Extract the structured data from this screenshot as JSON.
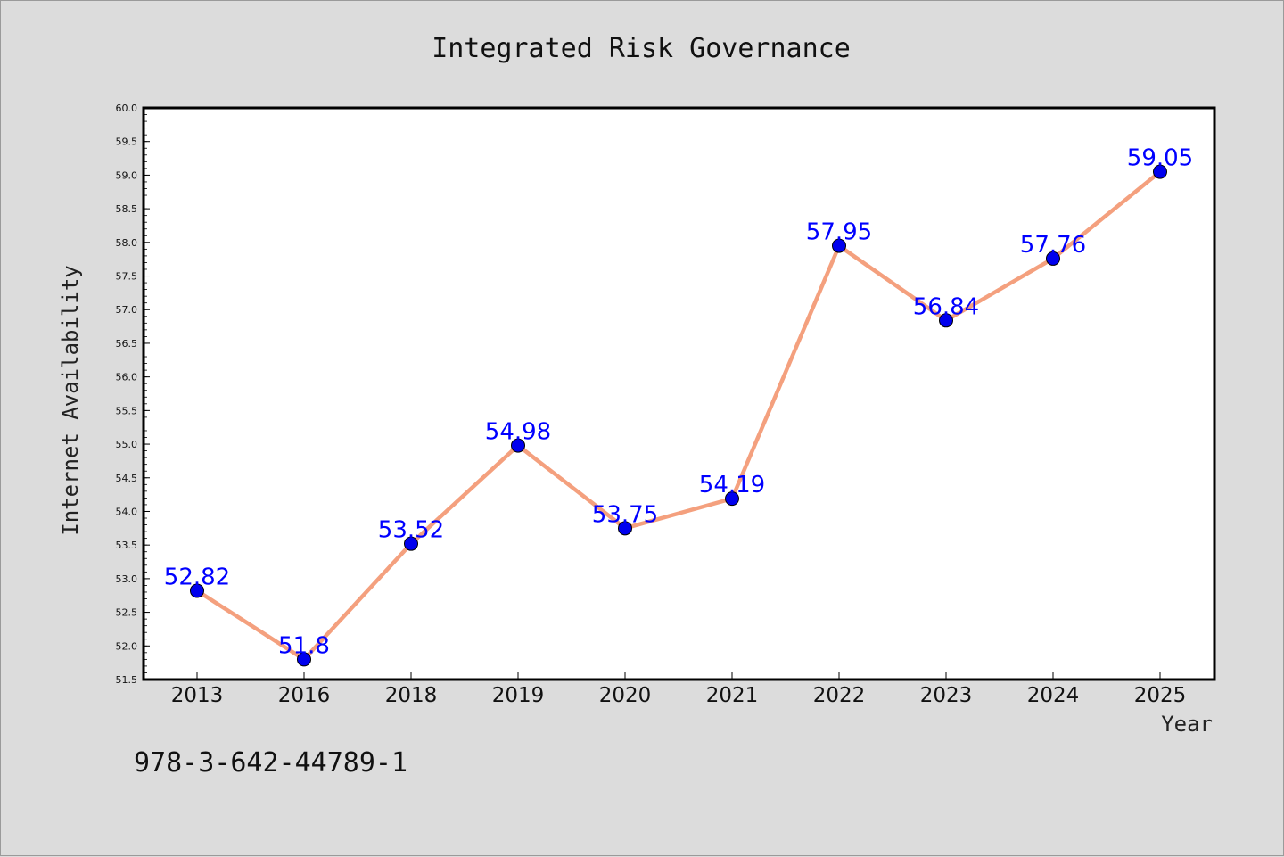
{
  "chart_data": {
    "type": "line",
    "title": "Integrated Risk Governance",
    "xlabel": "Year",
    "ylabel": "Internet Availability",
    "categories": [
      "2013",
      "2016",
      "2018",
      "2019",
      "2020",
      "2021",
      "2022",
      "2023",
      "2024",
      "2025"
    ],
    "series": [
      {
        "values": [
          52.82,
          51.8,
          53.52,
          54.98,
          53.75,
          54.19,
          57.95,
          56.84,
          57.76,
          59.05
        ],
        "labels": [
          "52.82",
          "51.8",
          "53.52",
          "54.98",
          "53.75",
          "54.19",
          "57.95",
          "56.84",
          "57.76",
          "59.05"
        ],
        "line_color": "#f4a07e",
        "marker_color": "#0000ee"
      }
    ],
    "ylim": [
      51.5,
      60.0
    ],
    "yticks": [
      "51.5",
      "52.0",
      "52.5",
      "53.0",
      "53.5",
      "54.0",
      "54.5",
      "55.0",
      "55.5",
      "56.0",
      "56.5",
      "57.0",
      "57.5",
      "58.0",
      "58.5",
      "59.0",
      "59.5",
      "60.0"
    ],
    "grid": false,
    "legend": "none"
  },
  "footnote": "978-3-642-44789-1"
}
